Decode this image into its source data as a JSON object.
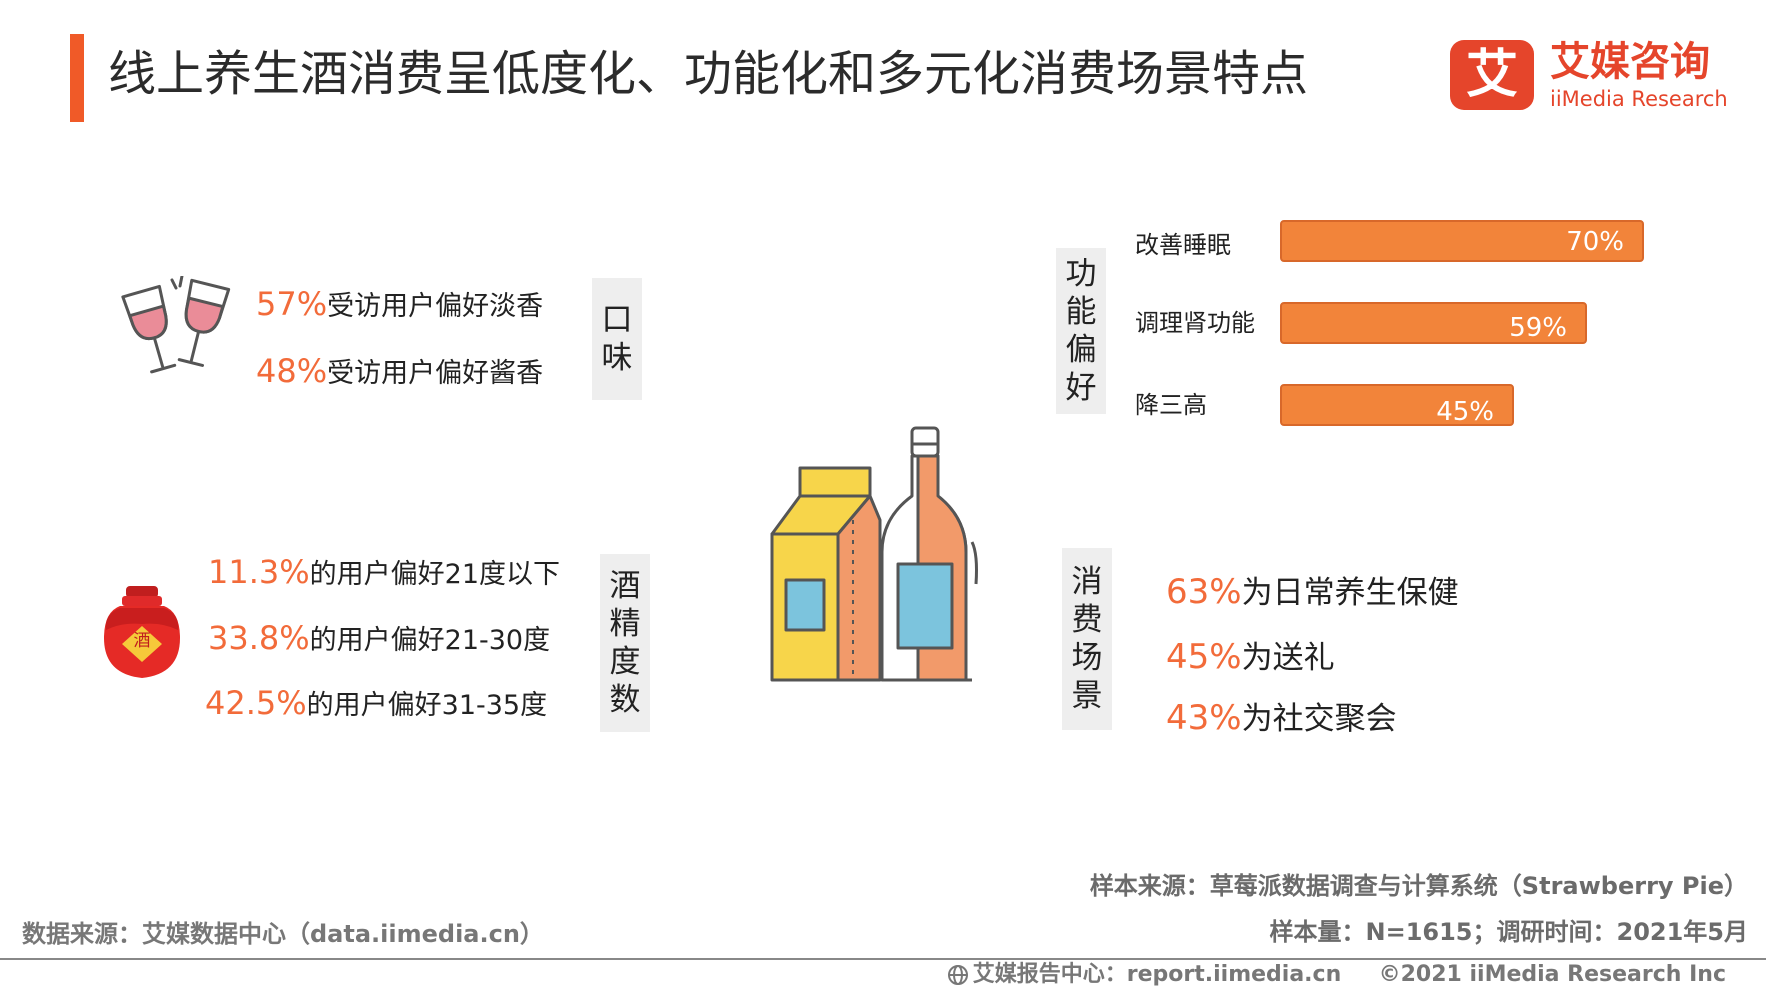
{
  "header": {
    "title": "线上养生酒消费呈低度化、功能化和多元化消费场景特点",
    "logo_mark": "艾",
    "logo_cn": "艾媒咨询",
    "logo_en": "iiMedia Research"
  },
  "taste": {
    "tag_chars": [
      "口",
      "味"
    ],
    "items": [
      {
        "pct": "57%",
        "text": "受访用户偏好淡香"
      },
      {
        "pct": "48%",
        "text": "受访用户偏好酱香"
      }
    ]
  },
  "alcohol": {
    "tag_chars": [
      "酒",
      "精",
      "度",
      "数"
    ],
    "jar_label": "酒",
    "items": [
      {
        "pct": "11.3%",
        "text": "的用户偏好21度以下"
      },
      {
        "pct": "33.8%",
        "text": "的用户偏好21-30度"
      },
      {
        "pct": "42.5%",
        "text": "的用户偏好31-35度"
      }
    ]
  },
  "function": {
    "tag_chars": [
      "功",
      "能",
      "偏",
      "好"
    ]
  },
  "chart_data": {
    "type": "bar",
    "orientation": "horizontal",
    "categories": [
      "改善睡眠",
      "调理肾功能",
      "降三高"
    ],
    "values": [
      70,
      59,
      45
    ],
    "value_labels": [
      "70%",
      "59%",
      "45%"
    ],
    "xlim": [
      0,
      100
    ],
    "bar_color": "#F2843A"
  },
  "scene": {
    "tag_chars": [
      "消",
      "费",
      "场",
      "景"
    ],
    "items": [
      {
        "pct": "63%",
        "text": "为日常养生保健"
      },
      {
        "pct": "45%",
        "text": "为送礼"
      },
      {
        "pct": "43%",
        "text": "为社交聚会"
      }
    ]
  },
  "footer": {
    "sample_source": "样本来源：草莓派数据调查与计算系统（Strawberry Pie）",
    "sample_size": "样本量：N=1615；调研时间：2021年5月",
    "data_source": "数据来源：艾媒数据中心（data.iimedia.cn）",
    "report_center": "艾媒报告中心：report.iimedia.cn",
    "copyright": "©2021  iiMedia Research  Inc"
  },
  "colors": {
    "accent": "#F05A28",
    "pct_text": "#F26B3A",
    "bar": "#F2843A",
    "tag_bg": "#EEEEEE"
  }
}
